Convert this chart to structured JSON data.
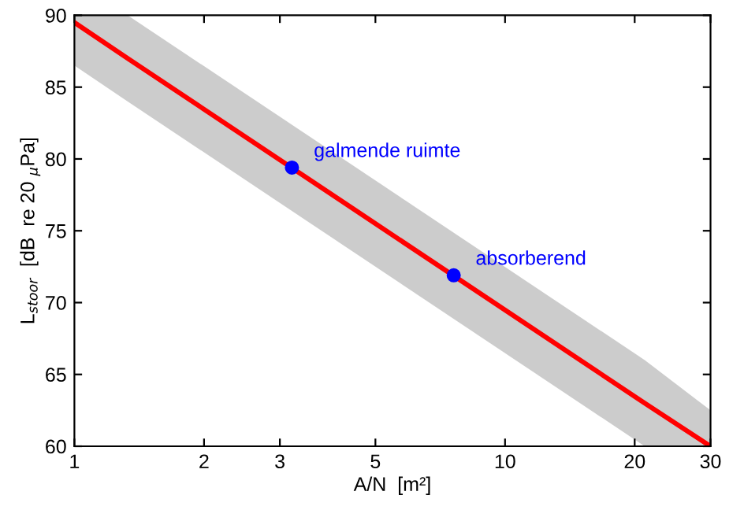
{
  "chart_data": {
    "type": "line",
    "xlabel": "A/N  [m²]",
    "ylabel": "L$_{stoor}$  [dB  re 20 $_{μ}$Pa]",
    "log": "x",
    "series": [
      {
        "color": "#ff0000",
        "x": [
          1,
          1.33,
          21.1,
          30
        ],
        "values": [
          89.5,
          87.0,
          63.0,
          60.0
        ],
        "lower": [
          86.5,
          84.0,
          60.0,
          60.0
        ],
        "upper": [
          90.0,
          90.0,
          66.0,
          62.5
        ]
      },
      {
        "type": "scatter",
        "color": "#0000ff",
        "x": [
          3.2,
          7.6
        ],
        "values": [
          79.4,
          71.9
        ]
      }
    ],
    "annotations": [
      {
        "text": "galmende ruimte",
        "x": 3.2,
        "y": 79.4
      },
      {
        "text": "absorberend",
        "x": 7.6,
        "y": 71.9
      }
    ],
    "xlim": [
      1,
      30
    ],
    "ylim": [
      60,
      90
    ],
    "xticks": [
      1,
      2,
      3,
      5,
      10,
      20,
      30
    ],
    "yticks": [
      60,
      65,
      70,
      75,
      80,
      85,
      90
    ],
    "grid": false,
    "legend": false
  }
}
